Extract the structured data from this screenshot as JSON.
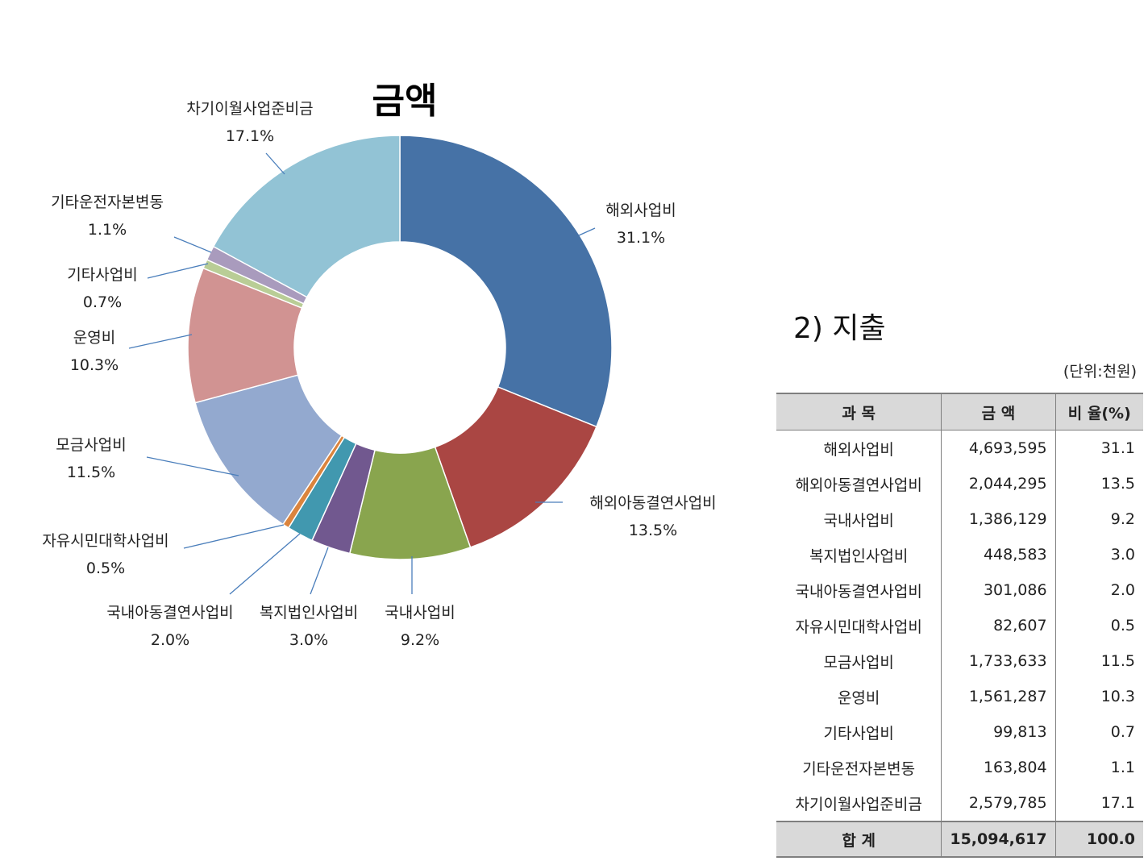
{
  "chart_data": {
    "type": "donut",
    "title": "금액",
    "categories": [
      "해외사업비",
      "해외아동결연사업비",
      "국내사업비",
      "복지법인사업비",
      "국내아동결연사업비",
      "자유시민대학사업비",
      "모금사업비",
      "운영비",
      "기타사업비",
      "기타운전자본변동",
      "차기이월사업준비금"
    ],
    "values": [
      31.1,
      13.5,
      9.2,
      3.0,
      2.0,
      0.5,
      11.5,
      10.3,
      0.7,
      1.1,
      17.1
    ],
    "percent_labels": [
      "31.1%",
      "13.5%",
      "9.2%",
      "3.0%",
      "2.0%",
      "0.5%",
      "11.5%",
      "10.3%",
      "0.7%",
      "1.1%",
      "17.1%"
    ],
    "colors": [
      "#4672a6",
      "#aa4643",
      "#89a54e",
      "#71588f",
      "#4198af",
      "#db843d",
      "#93a9cf",
      "#d19392",
      "#b9cd96",
      "#a99bbd",
      "#92c3d5"
    ]
  },
  "section": {
    "title": "2) 지출",
    "unit": "(단위:천원)"
  },
  "table": {
    "headers": [
      "과 목",
      "금 액",
      "비 율(%)"
    ],
    "rows": [
      [
        "해외사업비",
        "4,693,595",
        "31.1"
      ],
      [
        "해외아동결연사업비",
        "2,044,295",
        "13.5"
      ],
      [
        "국내사업비",
        "1,386,129",
        "9.2"
      ],
      [
        "복지법인사업비",
        "448,583",
        "3.0"
      ],
      [
        "국내아동결연사업비",
        "301,086",
        "2.0"
      ],
      [
        "자유시민대학사업비",
        "82,607",
        "0.5"
      ],
      [
        "모금사업비",
        "1,733,633",
        "11.5"
      ],
      [
        "운영비",
        "1,561,287",
        "10.3"
      ],
      [
        "기타사업비",
        "99,813",
        "0.7"
      ],
      [
        "기타운전자본변동",
        "163,804",
        "1.1"
      ],
      [
        "차기이월사업준비금",
        "2,579,785",
        "17.1"
      ]
    ],
    "total": [
      "합 계",
      "15,094,617",
      "100.0"
    ]
  }
}
